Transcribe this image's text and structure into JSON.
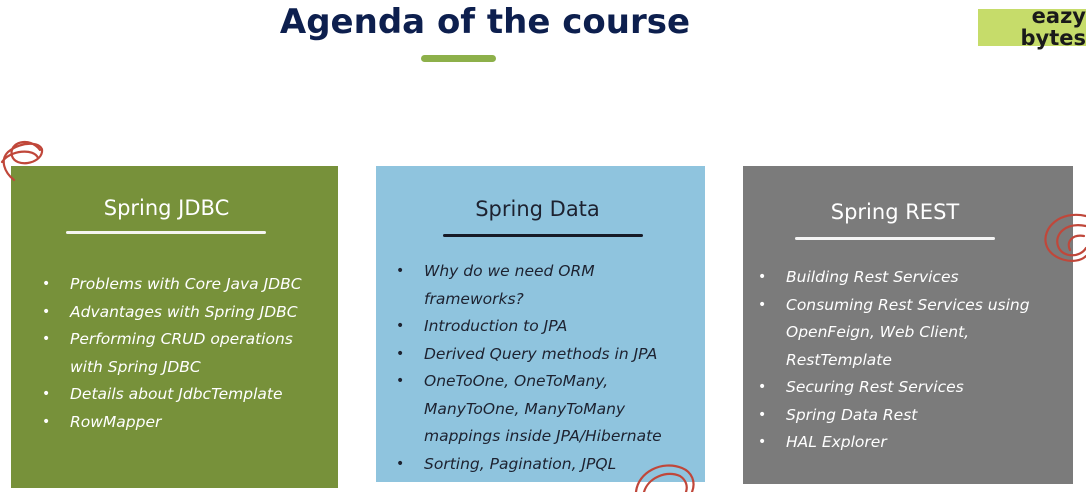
{
  "header": {
    "title": "Agenda of the course"
  },
  "logo": {
    "line1": "eazy",
    "line2": "bytes"
  },
  "cards": [
    {
      "title": "Spring JDBC",
      "items": [
        [
          "Problems with Core Java JDBC"
        ],
        [
          "Advantages with Spring JDBC"
        ],
        [
          "Performing CRUD operations",
          "with Spring JDBC"
        ],
        [
          "Details about JdbcTemplate"
        ],
        [
          "RowMapper"
        ]
      ]
    },
    {
      "title": "Spring Data",
      "items": [
        [
          "Why do we need ORM frameworks?"
        ],
        [
          "Introduction to JPA"
        ],
        [
          "Derived Query methods in JPA"
        ],
        [
          "OneToOne, OneToMany,",
          "ManyToOne, ManyToMany",
          "mappings inside JPA/Hibernate"
        ],
        [
          "Sorting, Pagination, JPQL"
        ]
      ]
    },
    {
      "title": "Spring REST",
      "items": [
        [
          "Building Rest Services"
        ],
        [
          "Consuming Rest Services using",
          "OpenFeign, Web Client,",
          "RestTemplate"
        ],
        [
          "Securing Rest Services"
        ],
        [
          "Spring Data Rest"
        ],
        [
          "HAL Explorer"
        ]
      ]
    }
  ],
  "colors": {
    "title": "#0d1f4e",
    "accent_green": "#8db04a",
    "card_jdbc": "#77913a",
    "card_data": "#8fc4de",
    "card_rest": "#7b7b7b",
    "logo_bg": "#c6dc6a",
    "scribble": "#c0473a"
  },
  "bullet_glyph": "•"
}
